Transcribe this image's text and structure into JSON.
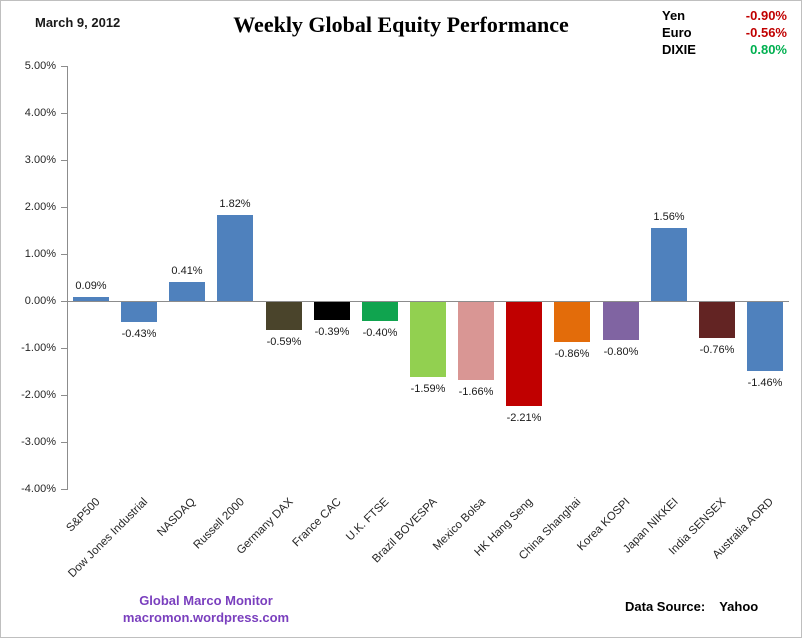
{
  "header": {
    "date_label": "March 9, 2012",
    "title": "Weekly Global Equity Performance"
  },
  "fx_panel": {
    "rows": [
      {
        "label": "Yen",
        "value": "-0.90%",
        "color": "#c00000"
      },
      {
        "label": "Euro",
        "value": "-0.56%",
        "color": "#c00000"
      },
      {
        "label": "DIXIE",
        "value": "0.80%",
        "color": "#00b050"
      }
    ]
  },
  "chart_data": {
    "type": "bar",
    "title": "Weekly Global Equity Performance",
    "categories": [
      "S&P500",
      "Dow Jones Industrial",
      "NASDAQ",
      "Russell 2000",
      "Germany DAX",
      "France CAC",
      "U.K. FTSE",
      "Brazil BOVESPA",
      "Mexico Bolsa",
      "HK Hang Seng",
      "China Shanghai",
      "Korea KOSPI",
      "Japan NIKKEI",
      "India SENSEX",
      "Australia AORD"
    ],
    "values": [
      0.09,
      -0.43,
      0.41,
      1.82,
      -0.59,
      -0.39,
      -0.4,
      -1.59,
      -1.66,
      -2.21,
      -0.86,
      -0.8,
      1.56,
      -0.76,
      -1.46
    ],
    "value_labels": [
      "0.09%",
      "-0.43%",
      "0.41%",
      "1.82%",
      "-0.59%",
      "-0.39%",
      "-0.40%",
      "-1.59%",
      "-1.66%",
      "-2.21%",
      "-0.86%",
      "-0.80%",
      "1.56%",
      "-0.76%",
      "-1.46%"
    ],
    "bar_colors": [
      "#4f81bd",
      "#4f81bd",
      "#4f81bd",
      "#4f81bd",
      "#4a442b",
      "#000000",
      "#10a44f",
      "#92d050",
      "#d99694",
      "#c00000",
      "#e36c0a",
      "#8064a2",
      "#4f81bd",
      "#632423",
      "#4f81bd"
    ],
    "y_ticks": [
      "5.00%",
      "4.00%",
      "3.00%",
      "2.00%",
      "1.00%",
      "0.00%",
      "-1.00%",
      "-2.00%",
      "-3.00%",
      "-4.00%"
    ],
    "ylim": [
      -4,
      5
    ],
    "xlabel": "",
    "ylabel": "",
    "grid": false,
    "legend": null
  },
  "footer": {
    "brand_line1": "Global Marco Monitor",
    "brand_line2": "macromon.wordpress.com",
    "brand_color": "#7a3fbe",
    "source_label": "Data Source:",
    "source_value": "Yahoo"
  }
}
